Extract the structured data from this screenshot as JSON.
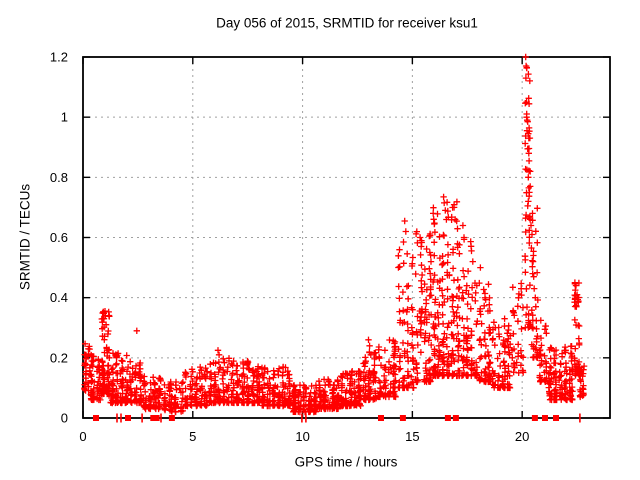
{
  "chart_data": {
    "type": "scatter",
    "title": "Day 056 of 2015, SRMTID for receiver ksu1",
    "xlabel": "GPS time / hours",
    "ylabel": "SRMTID / TECUs",
    "xlim": [
      0,
      24
    ],
    "ylim": [
      0,
      1.2
    ],
    "xticks": [
      0,
      5,
      10,
      15,
      20
    ],
    "yticks": [
      0,
      0.2,
      0.4,
      0.6,
      0.8,
      1,
      1.2
    ],
    "grid": true,
    "legend": false,
    "marker": "plus",
    "marker_color": "#ff0000",
    "grid_color": "#a0a0a0",
    "axis_color": "#000000",
    "density_bands": [
      [
        0.02,
        0.35,
        0.09,
        0.25,
        30,
        1.5
      ],
      [
        0.3,
        0.85,
        0.06,
        0.21,
        60,
        2.0
      ],
      [
        0.8,
        1.25,
        0.08,
        0.36,
        80,
        2.2
      ],
      [
        1.2,
        2.1,
        0.05,
        0.22,
        110,
        2.2
      ],
      [
        2.1,
        2.7,
        0.05,
        0.19,
        60,
        2.0
      ],
      [
        2.7,
        3.6,
        0.03,
        0.14,
        80,
        1.8
      ],
      [
        3.6,
        4.6,
        0.02,
        0.12,
        60,
        1.6
      ],
      [
        4.6,
        5.7,
        0.04,
        0.18,
        90,
        2.0
      ],
      [
        5.7,
        6.7,
        0.05,
        0.2,
        90,
        2.2
      ],
      [
        6.7,
        8.1,
        0.05,
        0.19,
        140,
        2.0
      ],
      [
        8.1,
        9.5,
        0.04,
        0.17,
        140,
        2.0
      ],
      [
        9.5,
        10.7,
        0.02,
        0.11,
        120,
        1.8
      ],
      [
        10.7,
        11.7,
        0.03,
        0.13,
        110,
        1.8
      ],
      [
        11.7,
        12.7,
        0.04,
        0.16,
        110,
        2.0
      ],
      [
        12.7,
        13.4,
        0.06,
        0.23,
        70,
        2.0
      ],
      [
        13.4,
        14.3,
        0.07,
        0.26,
        80,
        2.0
      ],
      [
        14.3,
        15.1,
        0.1,
        0.6,
        80,
        2.6
      ],
      [
        15.1,
        15.9,
        0.12,
        0.62,
        100,
        2.4
      ],
      [
        15.9,
        16.5,
        0.14,
        0.7,
        100,
        2.4
      ],
      [
        16.5,
        17.2,
        0.14,
        0.72,
        100,
        2.4
      ],
      [
        17.2,
        18.0,
        0.14,
        0.6,
        90,
        2.4
      ],
      [
        18.0,
        18.6,
        0.12,
        0.45,
        70,
        2.2
      ],
      [
        18.6,
        19.5,
        0.1,
        0.33,
        80,
        2.0
      ],
      [
        19.5,
        20.1,
        0.15,
        0.45,
        35,
        2.0
      ],
      [
        20.1,
        20.4,
        0.3,
        1.18,
        45,
        1.6
      ],
      [
        20.4,
        20.75,
        0.2,
        0.7,
        35,
        2.0
      ],
      [
        20.75,
        21.15,
        0.12,
        0.33,
        35,
        2.0
      ],
      [
        21.15,
        22.35,
        0.06,
        0.24,
        130,
        2.0
      ],
      [
        22.35,
        22.65,
        0.14,
        0.45,
        45,
        1.8
      ],
      [
        22.6,
        22.85,
        0.07,
        0.18,
        18,
        1.5
      ]
    ],
    "feature_points": [
      [
        0.95,
        0.33
      ],
      [
        1.0,
        0.355
      ],
      [
        1.02,
        0.34
      ],
      [
        1.05,
        0.31
      ],
      [
        2.45,
        0.29
      ],
      [
        6.15,
        0.225
      ],
      [
        6.2,
        0.21
      ],
      [
        13.0,
        0.26
      ],
      [
        13.05,
        0.24
      ],
      [
        14.65,
        0.655
      ],
      [
        14.7,
        0.62
      ],
      [
        15.35,
        0.6
      ],
      [
        15.4,
        0.57
      ],
      [
        15.95,
        0.68
      ],
      [
        16.0,
        0.645
      ],
      [
        16.42,
        0.735
      ],
      [
        16.45,
        0.715
      ],
      [
        16.5,
        0.69
      ],
      [
        16.55,
        0.66
      ],
      [
        16.9,
        0.7
      ],
      [
        16.95,
        0.66
      ],
      [
        17.3,
        0.64
      ],
      [
        17.35,
        0.6
      ],
      [
        17.75,
        0.52
      ],
      [
        18.1,
        0.5
      ],
      [
        19.2,
        0.33
      ],
      [
        19.6,
        0.28
      ],
      [
        20.16,
        1.2
      ],
      [
        20.18,
        1.17
      ],
      [
        20.21,
        1.165
      ],
      [
        20.17,
        1.13
      ],
      [
        20.2,
        1.05
      ],
      [
        20.2,
        1.0
      ],
      [
        20.23,
        0.99
      ],
      [
        20.25,
        0.985
      ],
      [
        20.22,
        0.955
      ],
      [
        20.28,
        0.945
      ],
      [
        20.3,
        0.93
      ],
      [
        20.25,
        0.895
      ],
      [
        20.3,
        0.88
      ],
      [
        20.22,
        0.825
      ],
      [
        20.28,
        0.8
      ],
      [
        20.3,
        0.765
      ],
      [
        20.33,
        0.75
      ],
      [
        20.28,
        0.72
      ],
      [
        20.25,
        0.705
      ],
      [
        20.35,
        0.67
      ],
      [
        20.4,
        0.64
      ],
      [
        20.45,
        0.61
      ],
      [
        20.42,
        0.565
      ],
      [
        20.5,
        0.52
      ],
      [
        20.48,
        0.48
      ],
      [
        20.55,
        0.43
      ],
      [
        20.6,
        0.4
      ],
      [
        20.62,
        0.37
      ],
      [
        22.4,
        0.45
      ],
      [
        22.45,
        0.44
      ],
      [
        22.42,
        0.425
      ],
      [
        22.5,
        0.41
      ],
      [
        22.55,
        0.385
      ],
      [
        22.47,
        0.37
      ]
    ],
    "zero_markers_squares": [
      0.59,
      2.05,
      3.2,
      3.35,
      4.05,
      13.57,
      14.57,
      16.62,
      16.98,
      20.58,
      21.04,
      21.54
    ],
    "zero_markers_ticks": [
      1.55,
      1.73,
      2.69,
      3.55,
      9.97,
      10.15,
      22.63
    ]
  }
}
